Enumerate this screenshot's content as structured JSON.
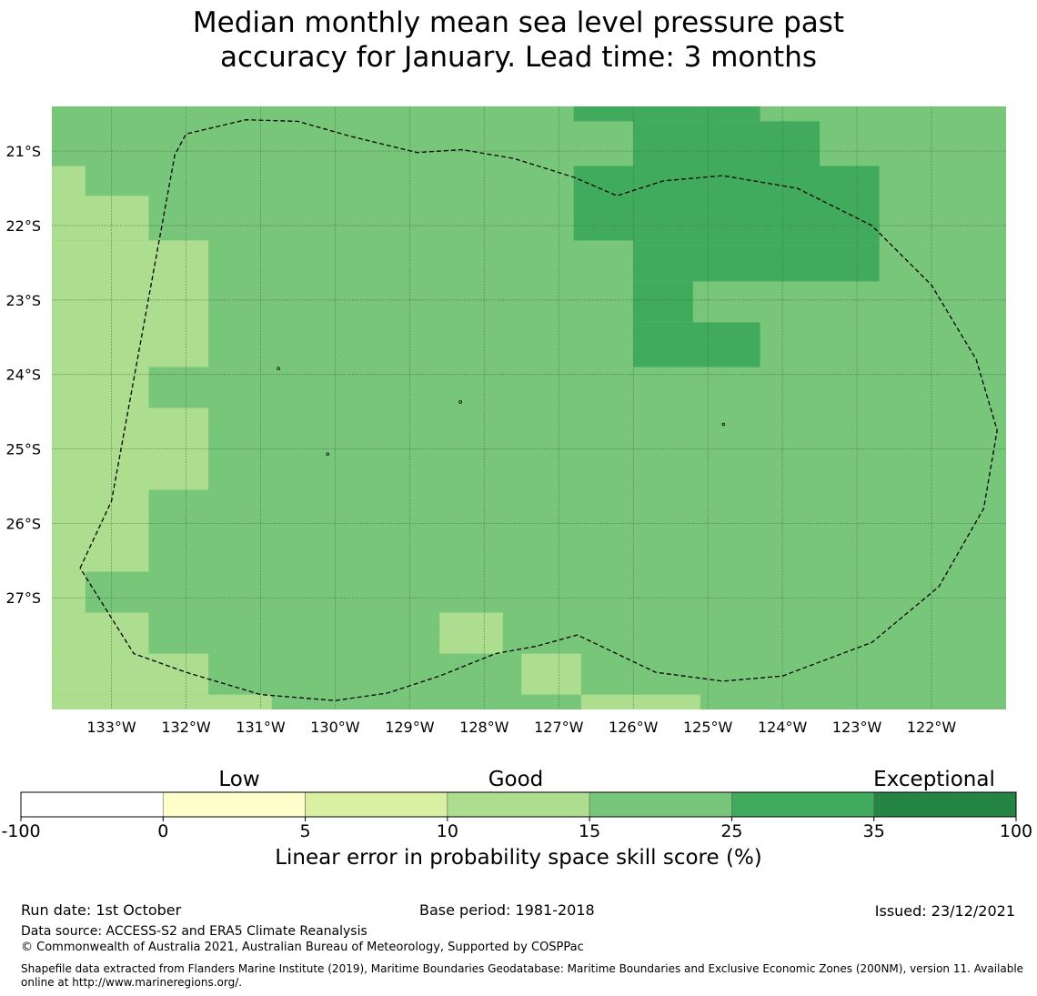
{
  "title_line1": "Median monthly mean sea level pressure past",
  "title_line2": "accuracy for January. Lead time: 3 months",
  "map": {
    "lon_range": [
      -133.8,
      -121.0
    ],
    "lat_range": [
      -28.5,
      -20.4
    ],
    "lat_ticks": [
      {
        "value": -21,
        "label": "21°S"
      },
      {
        "value": -22,
        "label": "22°S"
      },
      {
        "value": -23,
        "label": "23°S"
      },
      {
        "value": -24,
        "label": "24°S"
      },
      {
        "value": -25,
        "label": "25°S"
      },
      {
        "value": -26,
        "label": "26°S"
      },
      {
        "value": -27,
        "label": "27°S"
      }
    ],
    "lon_ticks": [
      {
        "value": -133,
        "label": "133°W"
      },
      {
        "value": -132,
        "label": "132°W"
      },
      {
        "value": -131,
        "label": "131°W"
      },
      {
        "value": -130,
        "label": "130°W"
      },
      {
        "value": -129,
        "label": "129°W"
      },
      {
        "value": -128,
        "label": "128°W"
      },
      {
        "value": -127,
        "label": "127°W"
      },
      {
        "value": -126,
        "label": "126°W"
      },
      {
        "value": -125,
        "label": "125°W"
      },
      {
        "value": -124,
        "label": "124°W"
      },
      {
        "value": -123,
        "label": "123°W"
      },
      {
        "value": -122,
        "label": "122°W"
      }
    ],
    "default_category": 4,
    "cells": [
      {
        "lon": [
          -126.8,
          -124.3
        ],
        "lat": [
          -20.6,
          -20.4
        ],
        "cat": 5
      },
      {
        "lon": [
          -126.0,
          -123.5
        ],
        "lat": [
          -21.2,
          -20.6
        ],
        "cat": 5
      },
      {
        "lon": [
          -126.8,
          -122.7
        ],
        "lat": [
          -22.2,
          -21.2
        ],
        "cat": 5
      },
      {
        "lon": [
          -126.0,
          -122.7
        ],
        "lat": [
          -22.75,
          -22.2
        ],
        "cat": 5
      },
      {
        "lon": [
          -126.0,
          -125.2
        ],
        "lat": [
          -23.3,
          -22.75
        ],
        "cat": 5
      },
      {
        "lon": [
          -126.0,
          -124.3
        ],
        "lat": [
          -23.9,
          -23.3
        ],
        "cat": 5
      },
      {
        "lon": [
          -133.8,
          -133.35
        ],
        "lat": [
          -21.6,
          -21.2
        ],
        "cat": 3
      },
      {
        "lon": [
          -133.8,
          -132.5
        ],
        "lat": [
          -22.2,
          -21.6
        ],
        "cat": 3
      },
      {
        "lon": [
          -133.8,
          -131.7
        ],
        "lat": [
          -23.9,
          -22.2
        ],
        "cat": 3
      },
      {
        "lon": [
          -133.8,
          -132.5
        ],
        "lat": [
          -24.45,
          -23.9
        ],
        "cat": 3
      },
      {
        "lon": [
          -133.8,
          -131.7
        ],
        "lat": [
          -25.55,
          -24.45
        ],
        "cat": 3
      },
      {
        "lon": [
          -133.8,
          -132.5
        ],
        "lat": [
          -26.65,
          -25.55
        ],
        "cat": 3
      },
      {
        "lon": [
          -133.8,
          -133.35
        ],
        "lat": [
          -27.2,
          -26.65
        ],
        "cat": 3
      },
      {
        "lon": [
          -133.8,
          -132.5
        ],
        "lat": [
          -27.75,
          -27.2
        ],
        "cat": 3
      },
      {
        "lon": [
          -133.8,
          -131.7
        ],
        "lat": [
          -28.3,
          -27.75
        ],
        "cat": 3
      },
      {
        "lon": [
          -133.8,
          -130.85
        ],
        "lat": [
          -28.5,
          -28.3
        ],
        "cat": 3
      },
      {
        "lon": [
          -128.6,
          -127.75
        ],
        "lat": [
          -27.75,
          -27.2
        ],
        "cat": 3
      },
      {
        "lon": [
          -127.5,
          -126.7
        ],
        "lat": [
          -28.3,
          -27.75
        ],
        "cat": 3
      },
      {
        "lon": [
          -126.7,
          -125.1
        ],
        "lat": [
          -28.5,
          -28.3
        ],
        "cat": 3
      }
    ],
    "outline": [
      [
        -133.42,
        -26.6
      ],
      [
        -133.0,
        -25.7
      ],
      [
        -132.15,
        -21.05
      ],
      [
        -132.0,
        -20.77
      ],
      [
        -131.2,
        -20.58
      ],
      [
        -130.5,
        -20.6
      ],
      [
        -129.8,
        -20.8
      ],
      [
        -128.9,
        -21.02
      ],
      [
        -128.3,
        -20.98
      ],
      [
        -127.6,
        -21.1
      ],
      [
        -126.8,
        -21.35
      ],
      [
        -126.22,
        -21.6
      ],
      [
        -125.6,
        -21.4
      ],
      [
        -124.8,
        -21.33
      ],
      [
        -123.8,
        -21.5
      ],
      [
        -122.8,
        -22.0
      ],
      [
        -122.0,
        -22.8
      ],
      [
        -121.4,
        -23.8
      ],
      [
        -121.12,
        -24.75
      ],
      [
        -121.3,
        -25.8
      ],
      [
        -121.9,
        -26.85
      ],
      [
        -122.8,
        -27.6
      ],
      [
        -124.0,
        -28.05
      ],
      [
        -124.8,
        -28.12
      ],
      [
        -125.7,
        -28.0
      ],
      [
        -126.75,
        -27.5
      ],
      [
        -127.3,
        -27.65
      ],
      [
        -127.85,
        -27.75
      ],
      [
        -128.6,
        -28.05
      ],
      [
        -129.3,
        -28.28
      ],
      [
        -130.0,
        -28.38
      ],
      [
        -131.0,
        -28.3
      ],
      [
        -132.0,
        -28.0
      ],
      [
        -132.7,
        -27.75
      ],
      [
        -133.42,
        -26.6
      ]
    ],
    "islands": [
      {
        "lon": -130.76,
        "lat": -23.92
      },
      {
        "lon": -128.32,
        "lat": -24.37
      },
      {
        "lon": -130.1,
        "lat": -25.07
      },
      {
        "lon": -124.79,
        "lat": -24.67
      }
    ]
  },
  "colorbar": {
    "categories": [
      {
        "range": [
          -100,
          0
        ],
        "color": "#ffffff"
      },
      {
        "range": [
          0,
          5
        ],
        "color": "#ffffcc"
      },
      {
        "range": [
          5,
          10
        ],
        "color": "#d9f0a3"
      },
      {
        "range": [
          10,
          15
        ],
        "color": "#addd8e"
      },
      {
        "range": [
          15,
          25
        ],
        "color": "#78c679"
      },
      {
        "range": [
          25,
          35
        ],
        "color": "#41ab5d"
      },
      {
        "range": [
          35,
          100
        ],
        "color": "#238443"
      }
    ],
    "tick_labels": [
      "-100",
      "0",
      "5",
      "10",
      "15",
      "25",
      "35",
      "100"
    ],
    "category_labels": [
      "Low",
      "Good",
      "Exceptional"
    ],
    "title": "Linear error in probability space skill score (%)"
  },
  "footer": {
    "run_date": "Run date: 1st October",
    "base_period": "Base period: 1981-2018",
    "issued": "Issued: 23/12/2021",
    "data_source": "Data source: ACCESS-S2 and ERA5 Climate Reanalysis",
    "copyright": "© Commonwealth of Australia 2021, Australian Bureau of Meteorology, Supported by COSPPac",
    "shapefile": "Shapefile data extracted from Flanders Marine Institute (2019), Maritime Boundaries Geodatabase: Maritime Boundaries and Exclusive Economic Zones (200NM), version 11. Available online at http://www.marineregions.org/."
  }
}
